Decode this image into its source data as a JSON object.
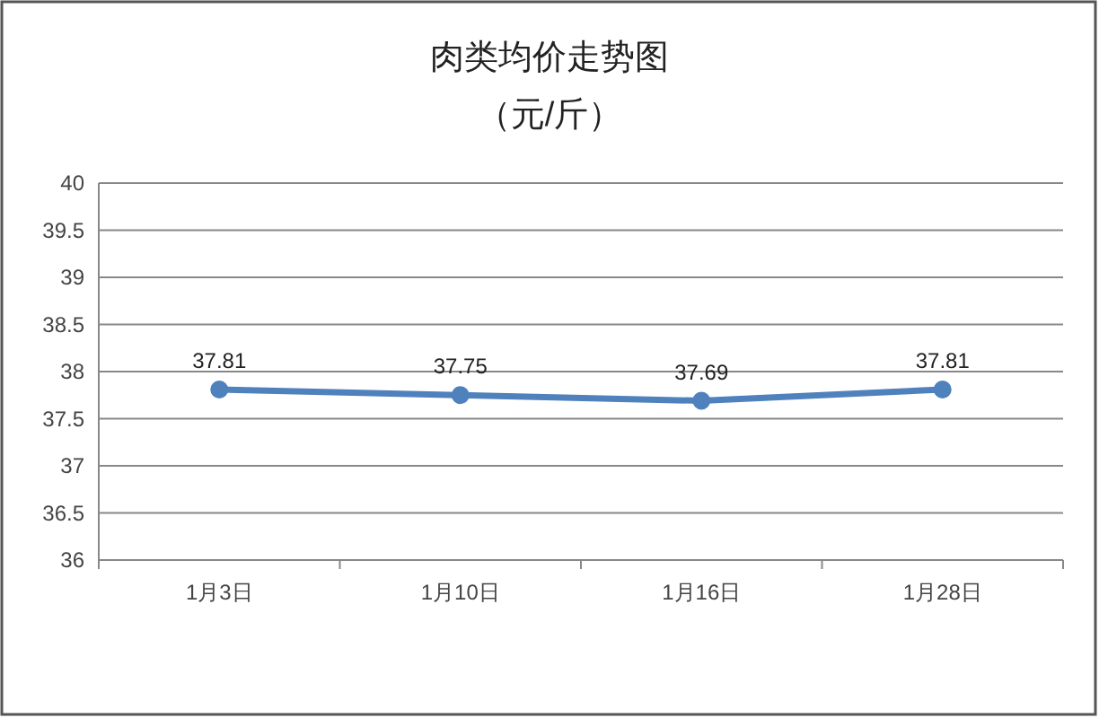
{
  "chart_data": {
    "type": "line",
    "title": "肉类均价走势图",
    "subtitle": "（元/斤）",
    "categories": [
      "1月3日",
      "1月10日",
      "1月16日",
      "1月28日"
    ],
    "series": [
      {
        "color": "#4f81bd",
        "values": [
          37.81,
          37.75,
          37.69,
          37.81
        ]
      }
    ],
    "ylim": [
      36,
      40
    ],
    "yticks": [
      36,
      36.5,
      37,
      37.5,
      38,
      38.5,
      39,
      39.5,
      40
    ],
    "grid": "y",
    "marker": "circle",
    "data_labels": true
  }
}
